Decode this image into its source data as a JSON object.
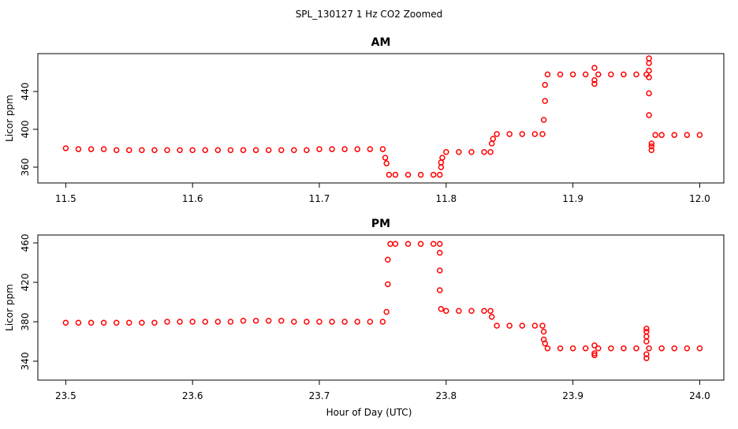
{
  "title": "SPL_130127  1 Hz CO2 Zoomed",
  "xlabel": "Hour of Day (UTC)",
  "chart_data": [
    {
      "type": "scatter",
      "title": "AM",
      "ylabel": "Licor ppm",
      "color": "#ff0000",
      "xlim": [
        11.478,
        12.019
      ],
      "ylim": [
        343.3,
        480
      ],
      "xticks": [
        11.5,
        11.6,
        11.7,
        11.8,
        11.9,
        {
          "value": 12,
          "label": "12.0"
        }
      ],
      "yticks": [
        360,
        400,
        440
      ],
      "x": [
        11.5,
        11.51,
        11.52,
        11.53,
        11.54,
        11.55,
        11.56,
        11.57,
        11.58,
        11.59,
        11.6,
        11.61,
        11.62,
        11.63,
        11.64,
        11.65,
        11.66,
        11.67,
        11.68,
        11.69,
        11.7,
        11.71,
        11.72,
        11.73,
        11.74,
        11.75,
        11.752,
        11.753,
        11.755,
        11.76,
        11.77,
        11.78,
        11.79,
        11.795,
        11.796,
        11.796,
        11.797,
        11.8,
        11.81,
        11.82,
        11.83,
        11.835,
        11.836,
        11.837,
        11.84,
        11.85,
        11.86,
        11.87,
        11.876,
        11.877,
        11.878,
        11.878,
        11.88,
        11.89,
        11.9,
        11.91,
        11.92,
        11.93,
        11.94,
        11.95,
        11.958,
        11.917,
        11.917,
        11.917,
        11.96,
        11.96,
        11.96,
        11.96,
        11.96,
        11.96,
        11.962,
        11.962,
        11.962,
        11.965,
        11.97,
        11.98,
        11.99,
        12.0
      ],
      "values": [
        380,
        379,
        379,
        379,
        378,
        378,
        378,
        378,
        378,
        378,
        378,
        378,
        378,
        378,
        378,
        378,
        378,
        378,
        378,
        378,
        379,
        379,
        379,
        379,
        379,
        379,
        370,
        364,
        352,
        352,
        352,
        352,
        352,
        352,
        360,
        365,
        370,
        376,
        376,
        376,
        376,
        376,
        385,
        390,
        395,
        395,
        395,
        395,
        395,
        410,
        430,
        447,
        458,
        458,
        458,
        458,
        458,
        458,
        458,
        458,
        458,
        465,
        452,
        448,
        475,
        470,
        462,
        455,
        438,
        415,
        378,
        382,
        385,
        394,
        394,
        394,
        394,
        394
      ]
    },
    {
      "type": "scatter",
      "title": "PM",
      "ylabel": "Licor ppm",
      "color": "#ff0000",
      "xlim": [
        23.478,
        24.019
      ],
      "ylim": [
        320.8,
        468
      ],
      "xticks": [
        23.5,
        23.6,
        23.7,
        23.8,
        23.9,
        {
          "value": 24,
          "label": "24.0"
        }
      ],
      "yticks": [
        340,
        380,
        420,
        460
      ],
      "x": [
        23.5,
        23.51,
        23.52,
        23.53,
        23.54,
        23.55,
        23.56,
        23.57,
        23.58,
        23.59,
        23.6,
        23.61,
        23.62,
        23.63,
        23.64,
        23.65,
        23.66,
        23.67,
        23.68,
        23.69,
        23.7,
        23.71,
        23.72,
        23.73,
        23.74,
        23.75,
        23.753,
        23.754,
        23.754,
        23.756,
        23.76,
        23.77,
        23.78,
        23.79,
        23.795,
        23.795,
        23.795,
        23.795,
        23.796,
        23.8,
        23.81,
        23.82,
        23.83,
        23.835,
        23.836,
        23.84,
        23.85,
        23.86,
        23.87,
        23.876,
        23.877,
        23.877,
        23.878,
        23.88,
        23.89,
        23.9,
        23.91,
        23.92,
        23.93,
        23.94,
        23.95,
        23.96,
        23.97,
        23.98,
        23.99,
        24.0,
        23.917,
        23.917,
        23.917,
        23.958,
        23.958,
        23.958,
        23.958,
        23.958,
        23.958
      ],
      "values": [
        379,
        379,
        379,
        379,
        379,
        379,
        379,
        379,
        380,
        380,
        380,
        380,
        380,
        380,
        381,
        381,
        381,
        381,
        380,
        380,
        380,
        380,
        380,
        380,
        380,
        380,
        390,
        418,
        443,
        459,
        459,
        459,
        459,
        459,
        459,
        450,
        432,
        412,
        393,
        391,
        391,
        391,
        391,
        391,
        385,
        376,
        376,
        376,
        376,
        376,
        370,
        362,
        358,
        353,
        353,
        353,
        353,
        353,
        353,
        353,
        353,
        353,
        353,
        353,
        353,
        353,
        356,
        346,
        348,
        373,
        370,
        365,
        360,
        347,
        343
      ]
    }
  ]
}
